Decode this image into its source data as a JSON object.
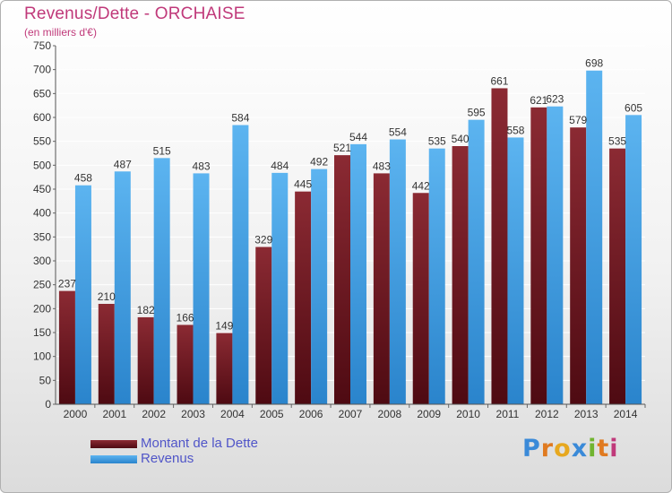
{
  "chart_data": {
    "type": "bar",
    "title": "Revenus/Dette - ORCHAISE",
    "subtitle": "(en milliers d'€)",
    "categories": [
      "2000",
      "2001",
      "2002",
      "2003",
      "2004",
      "2005",
      "2006",
      "2007",
      "2008",
      "2009",
      "2010",
      "2011",
      "2012",
      "2013",
      "2014"
    ],
    "series": [
      {
        "name": "Montant de la Dette",
        "color": "#7a1f28",
        "values": [
          237,
          210,
          182,
          166,
          149,
          329,
          445,
          521,
          483,
          442,
          540,
          661,
          621,
          579,
          535
        ]
      },
      {
        "name": "Revenus",
        "color": "#3a9de0",
        "values": [
          458,
          487,
          515,
          483,
          584,
          484,
          492,
          544,
          554,
          535,
          595,
          558,
          623,
          698,
          605
        ]
      }
    ],
    "ylim": [
      0,
      750
    ],
    "ytick_step": 50,
    "grid": true,
    "legend_position": "bottom-left"
  },
  "logo": {
    "text": "Proxiti",
    "letters": [
      "P",
      "r",
      "o",
      "x",
      "i",
      "t",
      "i"
    ],
    "colors": [
      "#3a8ad8",
      "#e07a20",
      "#e7a81f",
      "#3a8ad8",
      "#70b430",
      "#e07a20",
      "#c0397a"
    ]
  }
}
